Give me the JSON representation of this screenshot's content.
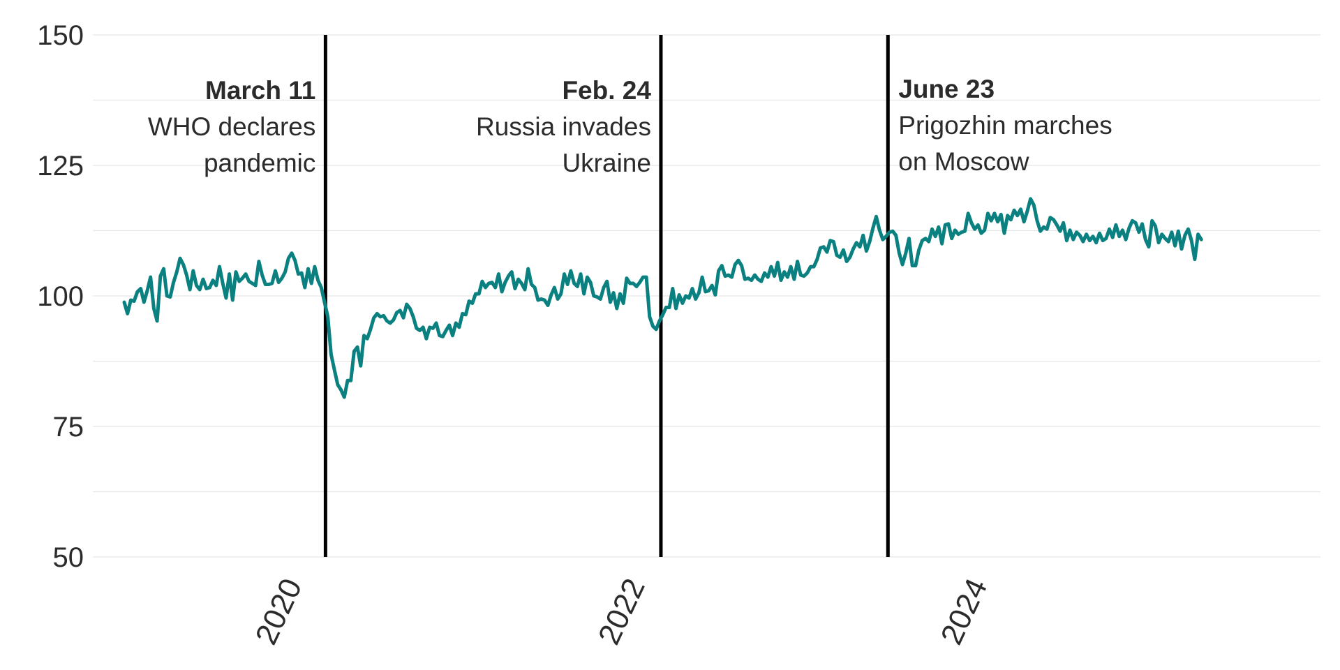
{
  "chart_data": {
    "type": "line",
    "title": "",
    "xlabel": "",
    "ylabel": "",
    "ylim": [
      50,
      150
    ],
    "xlim": [
      "2018-11-01",
      "2025-12-31"
    ],
    "y_ticks": [
      50,
      75,
      100,
      125,
      150
    ],
    "x_ticks": [
      {
        "label": "2020",
        "date": "2020-01-01"
      },
      {
        "label": "2022",
        "date": "2022-01-01"
      },
      {
        "label": "2024",
        "date": "2024-01-01"
      }
    ],
    "grid": "horizontal",
    "legend": "none",
    "colors": {
      "series": "#0a8080",
      "event_line": "#000000",
      "text": "#2b2b2b",
      "grid": "#e6e6e6"
    },
    "annotations": [
      {
        "date": "2020-03-11",
        "date_label": "March 11",
        "lines": [
          "WHO declares",
          "pandemic"
        ],
        "align": "left-of-line"
      },
      {
        "date": "2022-02-24",
        "date_label": "Feb. 24",
        "lines": [
          "Russia invades",
          "Ukraine"
        ],
        "align": "left-of-line"
      },
      {
        "date": "2023-06-23",
        "date_label": "June 23",
        "lines": [
          "Prigozhin marches",
          "on Moscow"
        ],
        "align": "right-of-line"
      }
    ],
    "series": [
      {
        "frequency": "weekly",
        "start": "2019-01-07",
        "values": [
          98.8,
          96.6,
          99.2,
          99.0,
          100.8,
          101.4,
          98.8,
          101.0,
          103.6,
          97.6,
          95.2,
          103.8,
          105.2,
          100.0,
          99.8,
          102.6,
          104.6,
          107.2,
          106.0,
          104.0,
          101.2,
          104.8,
          102.0,
          101.2,
          103.2,
          101.4,
          101.6,
          103.0,
          102.0,
          105.6,
          102.4,
          99.6,
          104.2,
          99.2,
          104.6,
          102.8,
          103.4,
          104.2,
          102.8,
          102.4,
          102.0,
          106.6,
          104.0,
          102.2,
          102.2,
          102.4,
          104.8,
          102.6,
          103.4,
          104.6,
          107.2,
          108.2,
          106.8,
          104.2,
          104.4,
          101.6,
          105.2,
          102.4,
          105.6,
          103.0,
          101.6,
          98.8,
          96.0,
          88.8,
          85.8,
          83.0,
          82.0,
          80.6,
          83.8,
          83.8,
          89.4,
          90.2,
          86.6,
          92.4,
          91.8,
          93.6,
          95.8,
          96.6,
          96.0,
          96.2,
          95.2,
          94.8,
          95.4,
          96.8,
          97.2,
          95.8,
          98.4,
          97.6,
          96.0,
          93.8,
          93.4,
          94.0,
          91.8,
          94.0,
          93.8,
          94.8,
          92.4,
          92.2,
          93.4,
          94.4,
          92.4,
          94.8,
          94.0,
          96.6,
          96.4,
          99.0,
          98.6,
          100.4,
          100.4,
          102.8,
          101.6,
          102.4,
          102.6,
          101.6,
          104.2,
          100.8,
          102.6,
          103.8,
          104.6,
          101.4,
          103.2,
          102.4,
          101.2,
          105.2,
          102.2,
          101.6,
          99.2,
          99.4,
          99.2,
          98.2,
          100.2,
          101.6,
          99.4,
          100.4,
          104.2,
          102.2,
          104.8,
          102.4,
          101.8,
          104.2,
          100.4,
          103.6,
          102.6,
          100.0,
          99.8,
          99.4,
          101.6,
          102.8,
          98.8,
          100.6,
          97.6,
          100.4,
          98.6,
          103.4,
          102.4,
          102.4,
          101.8,
          102.6,
          103.6,
          103.6,
          96.0,
          94.2,
          93.6,
          95.2,
          96.4,
          97.8,
          97.8,
          101.4,
          97.6,
          100.2,
          98.6,
          100.0,
          99.6,
          101.4,
          99.4,
          100.6,
          103.6,
          100.8,
          101.0,
          102.0,
          100.2,
          104.8,
          105.8,
          103.8,
          104.0,
          103.6,
          106.0,
          106.8,
          105.8,
          103.2,
          103.4,
          103.0,
          104.0,
          103.2,
          102.8,
          104.4,
          103.6,
          105.6,
          103.8,
          106.4,
          103.0,
          104.6,
          103.6,
          105.6,
          103.2,
          106.6,
          104.0,
          103.8,
          104.4,
          105.6,
          105.6,
          107.0,
          109.2,
          109.4,
          108.4,
          110.6,
          110.4,
          107.8,
          107.4,
          108.8,
          106.6,
          107.4,
          109.0,
          110.2,
          109.4,
          111.6,
          108.6,
          110.4,
          113.0,
          115.2,
          112.6,
          110.8,
          111.4,
          112.2,
          112.4,
          111.6,
          108.2,
          106.0,
          108.2,
          111.0,
          105.8,
          105.8,
          108.8,
          110.6,
          111.0,
          110.4,
          112.8,
          111.4,
          113.2,
          110.0,
          113.6,
          113.8,
          111.0,
          112.6,
          111.8,
          112.2,
          112.4,
          115.8,
          114.0,
          112.8,
          113.6,
          112.0,
          112.6,
          115.8,
          114.4,
          115.8,
          114.2,
          115.6,
          112.0,
          115.4,
          114.6,
          116.4,
          115.4,
          116.6,
          114.2,
          116.2,
          118.6,
          117.4,
          114.4,
          112.4,
          113.2,
          112.8,
          115.0,
          114.6,
          113.6,
          112.4,
          114.0,
          110.6,
          112.6,
          110.8,
          112.2,
          111.6,
          110.4,
          111.8,
          110.6,
          111.4,
          110.2,
          112.0,
          110.6,
          111.0,
          112.8,
          111.2,
          113.6,
          111.4,
          112.6,
          110.8,
          113.0,
          114.4,
          114.0,
          112.2,
          113.8,
          110.8,
          109.4,
          114.4,
          113.4,
          110.2,
          111.8,
          111.0,
          110.4,
          112.2,
          109.6,
          112.4,
          109.0,
          111.6,
          112.8,
          110.6,
          107.0,
          111.8,
          110.8
        ]
      }
    ]
  }
}
